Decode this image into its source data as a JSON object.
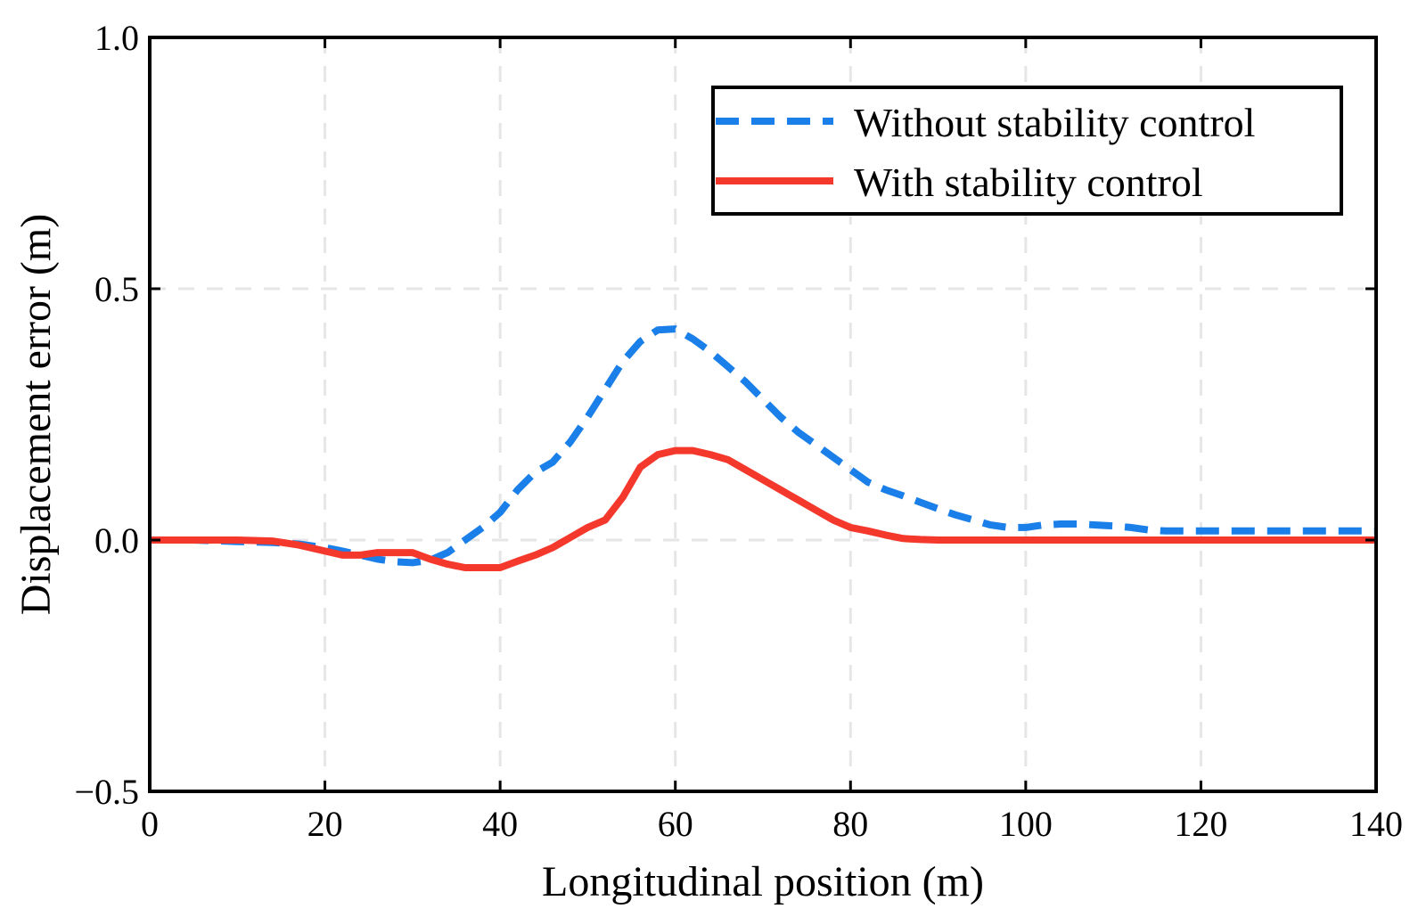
{
  "colors": {
    "without": "#1a7fe8",
    "with": "#f5382c",
    "grid": "#e6e6e6",
    "axis": "#000000"
  },
  "chart_data": {
    "type": "line",
    "title": "",
    "xlabel": "Longitudinal position (m)",
    "ylabel": "Displacement error (m)",
    "xlim": [
      0,
      140
    ],
    "ylim": [
      -0.5,
      1.0
    ],
    "xticks": [
      0,
      20,
      40,
      60,
      80,
      100,
      120,
      140
    ],
    "yticks": [
      -0.5,
      0.0,
      0.5,
      1.0
    ],
    "xtick_labels": [
      "0",
      "20",
      "40",
      "60",
      "80",
      "100",
      "120",
      "140"
    ],
    "ytick_labels": [
      "−0.5",
      "0.0",
      "0.5",
      "1.0"
    ],
    "grid": true,
    "legend_position": "top-right",
    "series": [
      {
        "name": "Without stability control",
        "style": "dashed",
        "x": [
          0,
          5,
          10,
          14,
          17,
          20,
          22,
          24,
          26,
          28,
          30,
          32,
          34,
          36,
          38,
          40,
          42,
          44,
          46,
          48,
          50,
          52,
          54,
          56,
          58,
          60,
          62,
          64,
          66,
          68,
          70,
          72,
          74,
          76,
          78,
          80,
          82,
          84,
          86,
          88,
          90,
          92,
          94,
          96,
          98,
          100,
          102,
          104,
          106,
          108,
          110,
          112,
          114,
          116,
          120,
          125,
          130,
          135,
          140
        ],
        "values": [
          0.0,
          0.0,
          -0.003,
          -0.005,
          -0.008,
          -0.015,
          -0.022,
          -0.03,
          -0.038,
          -0.043,
          -0.045,
          -0.04,
          -0.025,
          0.0,
          0.025,
          0.055,
          0.1,
          0.135,
          0.155,
          0.195,
          0.245,
          0.3,
          0.355,
          0.395,
          0.418,
          0.42,
          0.4,
          0.375,
          0.345,
          0.315,
          0.28,
          0.245,
          0.215,
          0.19,
          0.165,
          0.14,
          0.115,
          0.1,
          0.088,
          0.075,
          0.062,
          0.05,
          0.04,
          0.03,
          0.025,
          0.025,
          0.03,
          0.032,
          0.032,
          0.03,
          0.028,
          0.025,
          0.02,
          0.018,
          0.018,
          0.018,
          0.018,
          0.018,
          0.018
        ]
      },
      {
        "name": "With stability control",
        "style": "solid",
        "x": [
          0,
          5,
          10,
          14,
          17,
          20,
          22,
          24,
          26,
          28,
          30,
          32,
          34,
          36,
          38,
          40,
          42,
          44,
          46,
          48,
          50,
          52,
          54,
          56,
          58,
          60,
          62,
          64,
          66,
          68,
          70,
          72,
          74,
          76,
          78,
          80,
          82,
          84,
          86,
          88,
          90,
          95,
          100,
          110,
          120,
          130,
          140
        ],
        "values": [
          0.0,
          0.0,
          0.0,
          -0.002,
          -0.01,
          -0.022,
          -0.03,
          -0.03,
          -0.025,
          -0.025,
          -0.025,
          -0.038,
          -0.048,
          -0.055,
          -0.055,
          -0.055,
          -0.042,
          -0.03,
          -0.015,
          0.005,
          0.025,
          0.04,
          0.085,
          0.145,
          0.17,
          0.178,
          0.178,
          0.17,
          0.16,
          0.14,
          0.12,
          0.1,
          0.08,
          0.06,
          0.04,
          0.025,
          0.018,
          0.01,
          0.003,
          0.001,
          0.0,
          0.0,
          0.0,
          0.0,
          0.0,
          0.0,
          0.0
        ]
      }
    ]
  }
}
